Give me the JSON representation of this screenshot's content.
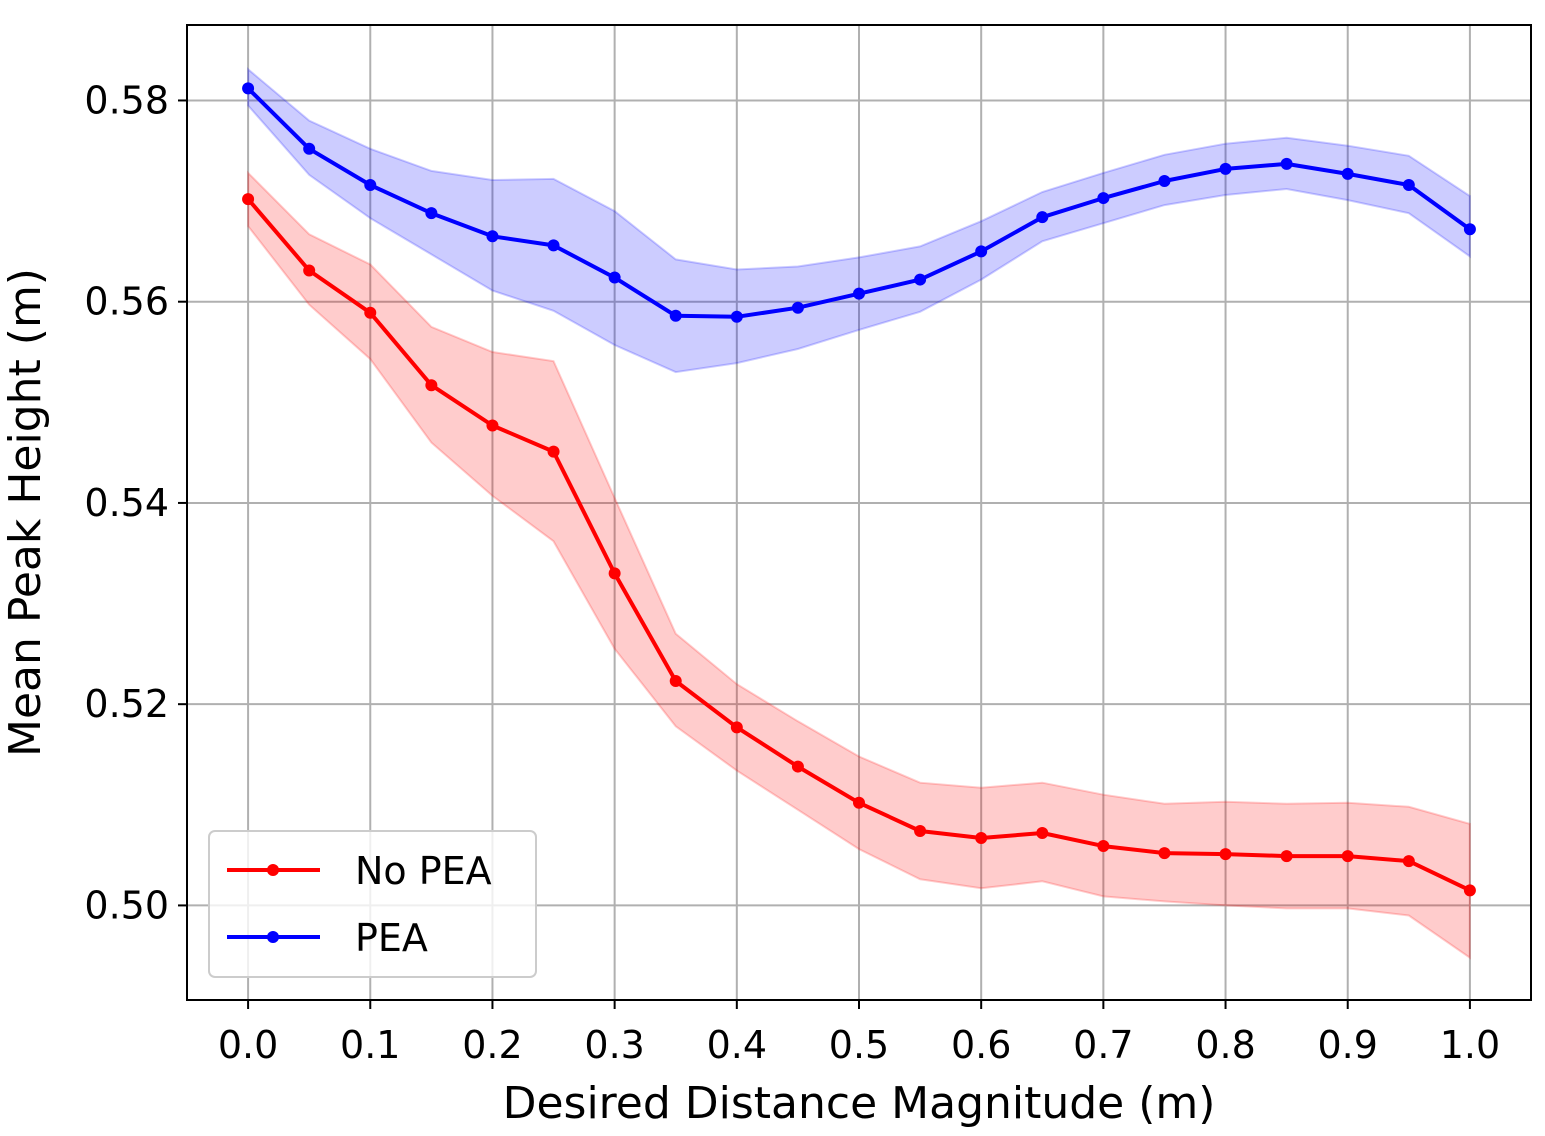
{
  "chart_data": {
    "type": "line",
    "title": "",
    "xlabel": "Desired Distance Magnitude (m)",
    "ylabel": "Mean Peak Height (m)",
    "xlim": [
      -0.05,
      1.05
    ],
    "ylim": [
      0.4906,
      0.5875
    ],
    "grid": true,
    "legend_position": "lower-left",
    "x": [
      0.0,
      0.05,
      0.1,
      0.15,
      0.2,
      0.25,
      0.3,
      0.35,
      0.4,
      0.45,
      0.5,
      0.55,
      0.6,
      0.65,
      0.7,
      0.75,
      0.8,
      0.85,
      0.9,
      0.95,
      1.0
    ],
    "xticks": [
      0.0,
      0.1,
      0.2,
      0.3,
      0.4,
      0.5,
      0.6,
      0.7,
      0.8,
      0.9,
      1.0
    ],
    "xtick_labels": [
      "0.0",
      "0.1",
      "0.2",
      "0.3",
      "0.4",
      "0.5",
      "0.6",
      "0.7",
      "0.8",
      "0.9",
      "1.0"
    ],
    "yticks": [
      0.5,
      0.52,
      0.54,
      0.56,
      0.58
    ],
    "ytick_labels": [
      "0.50",
      "0.52",
      "0.54",
      "0.56",
      "0.58"
    ],
    "series": [
      {
        "name": "No PEA",
        "color": "#ff0000",
        "band_color": "#ff0000",
        "values": [
          0.5702,
          0.5631,
          0.5589,
          0.5517,
          0.5477,
          0.5451,
          0.533,
          0.5223,
          0.5177,
          0.5138,
          0.5102,
          0.5074,
          0.5067,
          0.5072,
          0.5059,
          0.5052,
          0.5051,
          0.5049,
          0.5049,
          0.5044,
          0.5015
        ],
        "upper": [
          0.5728,
          0.5667,
          0.5637,
          0.5575,
          0.555,
          0.5541,
          0.5405,
          0.527,
          0.522,
          0.5183,
          0.5148,
          0.5122,
          0.5117,
          0.5122,
          0.511,
          0.5101,
          0.5103,
          0.5101,
          0.5102,
          0.5098,
          0.5081
        ],
        "lower": [
          0.5675,
          0.5597,
          0.5543,
          0.546,
          0.5407,
          0.5362,
          0.5255,
          0.5178,
          0.5134,
          0.5095,
          0.5056,
          0.5026,
          0.5017,
          0.5024,
          0.5009,
          0.5004,
          0.5,
          0.4997,
          0.4997,
          0.499,
          0.4948
        ]
      },
      {
        "name": "PEA",
        "color": "#0000ff",
        "band_color": "#0000ff",
        "values": [
          0.5812,
          0.5752,
          0.5716,
          0.5688,
          0.5665,
          0.5656,
          0.5624,
          0.5586,
          0.5585,
          0.5594,
          0.5608,
          0.5622,
          0.565,
          0.5684,
          0.5703,
          0.572,
          0.5732,
          0.5737,
          0.5727,
          0.5716,
          0.5672
        ],
        "upper": [
          0.5831,
          0.578,
          0.5752,
          0.573,
          0.5721,
          0.5722,
          0.569,
          0.5642,
          0.5632,
          0.5635,
          0.5644,
          0.5655,
          0.568,
          0.5709,
          0.5728,
          0.5746,
          0.5757,
          0.5763,
          0.5755,
          0.5745,
          0.5705
        ],
        "lower": [
          0.5795,
          0.5726,
          0.5683,
          0.5647,
          0.5611,
          0.5591,
          0.5557,
          0.553,
          0.5539,
          0.5553,
          0.5572,
          0.559,
          0.5622,
          0.566,
          0.5678,
          0.5696,
          0.5706,
          0.5712,
          0.5701,
          0.5688,
          0.5645
        ]
      }
    ]
  }
}
